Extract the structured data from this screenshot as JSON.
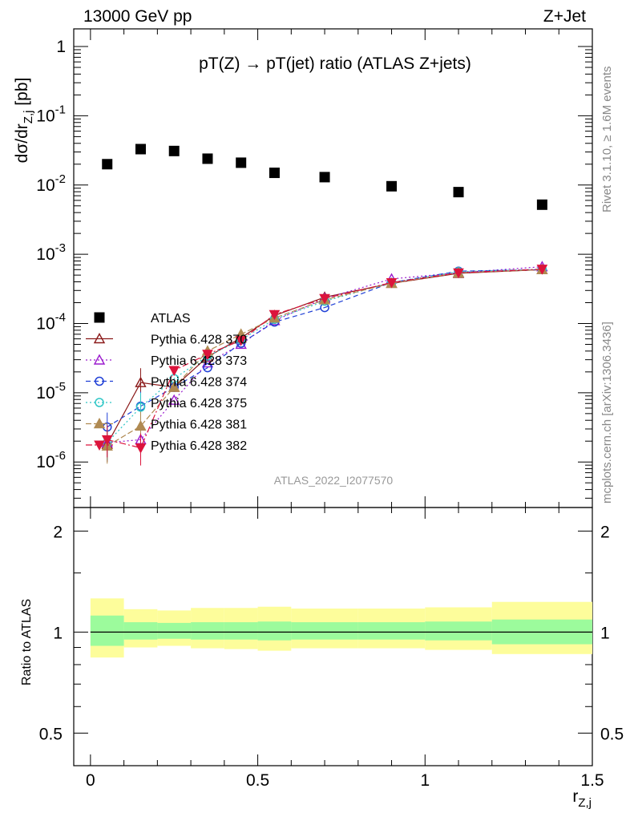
{
  "header": {
    "left": "13000 GeV pp",
    "right": "Z+Jet",
    "plot_title": "pT(Z) → pT(jet) ratio (ATLAS Z+jets)"
  },
  "side": {
    "rivet": "Rivet 3.1.10, ≥ 1.6M events",
    "mcplots": "mcplots.cern.ch [arXiv:1306.3436]"
  },
  "watermark": "ATLAS_2022_I2077570",
  "axis": {
    "ylabel_main": "dσ/dr_Z,j [pb]",
    "ylabel_ratio": "Ratio to ATLAS",
    "xlabel": "r_Z,j"
  },
  "chart_data": [
    {
      "type": "scatter",
      "title": "pT(Z) → pT(jet) ratio (ATLAS Z+jets)",
      "xlim": [
        -0.05,
        1.5
      ],
      "ylim": [
        2.2e-07,
        1.8
      ],
      "yscale": "log",
      "x_ticks": [
        "0",
        "0.5",
        "1",
        "1.5"
      ],
      "y_ticks": [
        {
          "base": "10",
          "exp": "-6",
          "v": 1e-06
        },
        {
          "base": "10",
          "exp": "-5",
          "v": 1e-05
        },
        {
          "base": "10",
          "exp": "-4",
          "v": 0.0001
        },
        {
          "base": "10",
          "exp": "-3",
          "v": 0.001
        },
        {
          "base": "10",
          "exp": "-2",
          "v": 0.01
        },
        {
          "base": "10",
          "exp": "-1",
          "v": 0.1
        },
        {
          "base": "1",
          "exp": "",
          "v": 1
        }
      ],
      "x": [
        0.05,
        0.15,
        0.25,
        0.35,
        0.45,
        0.55,
        0.7,
        0.9,
        1.1,
        1.35
      ],
      "x_bins": [
        [
          0,
          0.1
        ],
        [
          0.1,
          0.2
        ],
        [
          0.2,
          0.3
        ],
        [
          0.3,
          0.4
        ],
        [
          0.4,
          0.5
        ],
        [
          0.5,
          0.6
        ],
        [
          0.6,
          0.8
        ],
        [
          0.8,
          1.0
        ],
        [
          1.0,
          1.2
        ],
        [
          1.2,
          1.5
        ]
      ],
      "series": [
        {
          "name": "ATLAS",
          "color": "#000000",
          "marker": "square",
          "dash": "",
          "values": [
            0.02,
            0.033,
            0.031,
            0.024,
            0.021,
            0.015,
            0.013,
            0.0096,
            0.0079,
            0.0052
          ]
        },
        {
          "name": "Pythia 6.428 370",
          "color": "#8b1a1a",
          "marker": "triangle-open",
          "dash": "",
          "values": [
            1.8e-06,
            1.4e-05,
            1.2e-05,
            3.3e-05,
            6.2e-05,
            0.00013,
            0.00024,
            0.00038,
            0.00053,
            0.0006
          ]
        },
        {
          "name": "Pythia 6.428 373",
          "color": "#9a1acd",
          "marker": "triangle-open",
          "dash": "2,3",
          "values": [
            1.9e-06,
            2.1e-06,
            7.8e-06,
            2.7e-05,
            5e-05,
            0.00011,
            0.00023,
            0.00044,
            0.00054,
            0.00066
          ]
        },
        {
          "name": "Pythia 6.428 374",
          "color": "#1f3fd6",
          "marker": "circle-open",
          "dash": "6,4",
          "values": [
            3.2e-06,
            6.4e-06,
            1.2e-05,
            2.3e-05,
            5.2e-05,
            0.000105,
            0.00017,
            0.00039,
            0.00057,
            0.0006
          ]
        },
        {
          "name": "Pythia 6.428 375",
          "color": "#2ec6c6",
          "marker": "circle-open",
          "dash": "2,3",
          "values": [
            1.9e-06,
            6.2e-06,
            1.6e-05,
            3.4e-05,
            5.8e-05,
            0.000115,
            0.00021,
            0.00039,
            0.00056,
            0.00061
          ]
        },
        {
          "name": "Pythia 6.428 381",
          "color": "#b08a52",
          "marker": "triangle-filled",
          "dash": "7,3",
          "values": [
            1.7e-06,
            3.3e-06,
            1.2e-05,
            4e-05,
            7e-05,
            0.00012,
            0.00022,
            0.00038,
            0.00054,
            0.0006
          ]
        },
        {
          "name": "Pythia 6.428 382",
          "color": "#dc143c",
          "marker": "triangle-down-filled",
          "dash": "8,3,2,3",
          "values": [
            2.1e-06,
            1.6e-06,
            2.1e-05,
            3.6e-05,
            5.7e-05,
            0.000135,
            0.00023,
            0.00039,
            0.00054,
            0.00061
          ]
        }
      ],
      "legend": "left"
    },
    {
      "type": "area",
      "title": "",
      "ylabel": "Ratio to ATLAS",
      "xlabel": "r_Z,j",
      "xlim": [
        -0.05,
        1.5
      ],
      "ylim": [
        0.4,
        2.35
      ],
      "yscale": "log",
      "x_ticks": [
        "0",
        "0.5",
        "1",
        "1.5"
      ],
      "y_ticks": [
        {
          "label": "0.5",
          "v": 0.5
        },
        {
          "label": "1",
          "v": 1
        },
        {
          "label": "2",
          "v": 2
        }
      ],
      "reference": 1,
      "bands": {
        "x_edges": [
          0,
          0.1,
          0.2,
          0.3,
          0.4,
          0.5,
          0.6,
          0.8,
          1.0,
          1.2,
          1.5
        ],
        "inner": {
          "color": "#9cfb9c",
          "lo": [
            0.91,
            0.95,
            0.955,
            0.95,
            0.95,
            0.945,
            0.95,
            0.95,
            0.945,
            0.92
          ],
          "hi": [
            1.12,
            1.07,
            1.065,
            1.07,
            1.07,
            1.075,
            1.07,
            1.07,
            1.075,
            1.09
          ]
        },
        "outer": {
          "color": "#fdfd9b",
          "lo": [
            0.84,
            0.9,
            0.91,
            0.895,
            0.89,
            0.88,
            0.895,
            0.895,
            0.885,
            0.86
          ],
          "hi": [
            1.26,
            1.17,
            1.16,
            1.18,
            1.18,
            1.19,
            1.175,
            1.175,
            1.185,
            1.23
          ]
        }
      }
    }
  ]
}
